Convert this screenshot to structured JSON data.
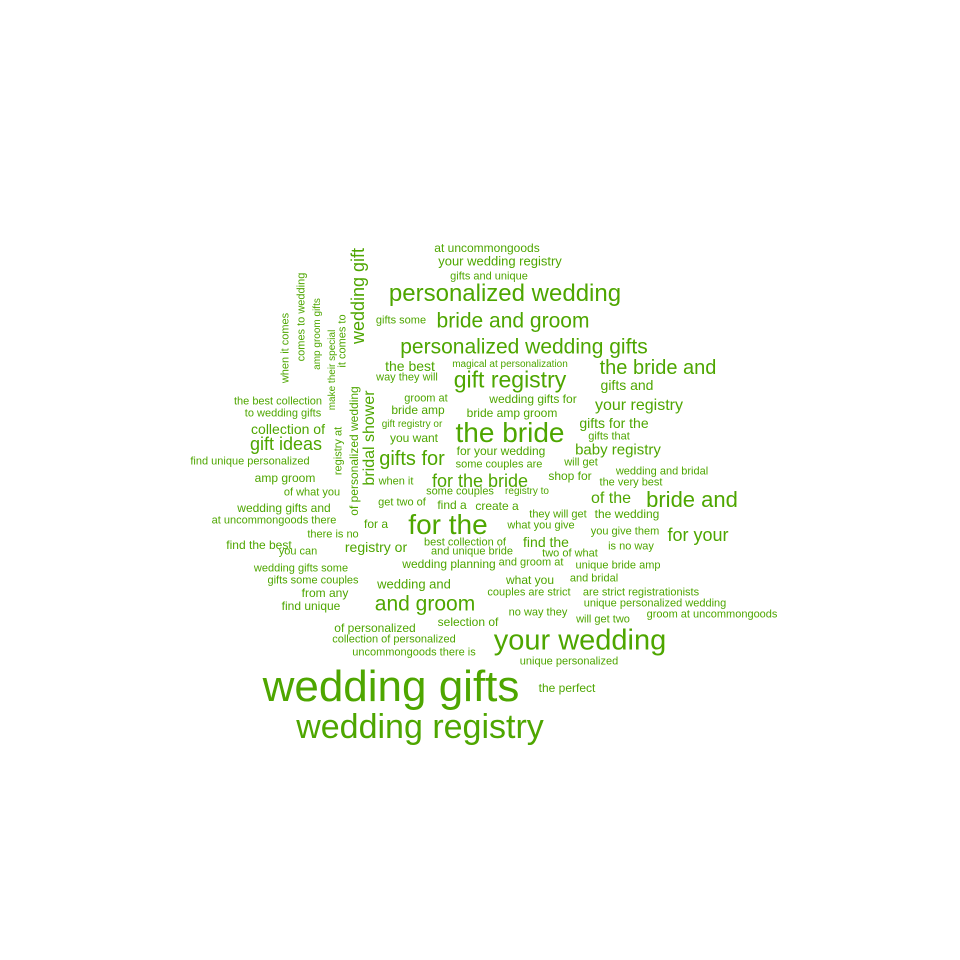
{
  "cloud": {
    "color": "#4ea600",
    "words": [
      "wedding gifts",
      "wedding registry",
      "your wedding",
      "the bride",
      "for the",
      "personalized wedding",
      "personalized wedding gifts",
      "bride and groom",
      "gift registry",
      "and groom",
      "bride and",
      "the bride and",
      "wedding gift",
      "gifts for",
      "for the bride",
      "gift ideas",
      "your registry",
      "for your",
      "baby registry",
      "bridal shower",
      "gifts for the",
      "of the",
      "registry or",
      "find the",
      "the best",
      "gifts and",
      "collection of",
      "at uncommongoods",
      "your wedding registry",
      "gifts and unique",
      "gifts some",
      "magical at personalization",
      "way they will",
      "groom at",
      "bride amp",
      "bride amp groom",
      "wedding gifts for",
      "the best collection",
      "to wedding gifts",
      "gift registry or",
      "you want",
      "gifts that",
      "find unique personalized",
      "for your wedding",
      "some couples are",
      "will get",
      "wedding and bridal",
      "amp groom",
      "when it",
      "shop for",
      "the very best",
      "of what you",
      "some couples",
      "registry to",
      "get two of",
      "find a",
      "create a",
      "they will get",
      "the wedding",
      "wedding gifts and",
      "at uncommongoods there",
      "for a",
      "what you give",
      "you give them",
      "there is no",
      "find the best",
      "best collection of",
      "is no way",
      "you can",
      "and unique bride",
      "two of what",
      "wedding planning",
      "and groom at",
      "unique bride amp",
      "wedding gifts some",
      "gifts some couples",
      "wedding and",
      "what you",
      "and bridal",
      "from any",
      "couples are strict",
      "are strict registrationists",
      "find unique",
      "no way they",
      "unique personalized wedding",
      "will get two",
      "groom at uncommongoods",
      "selection of",
      "of personalized",
      "collection of personalized",
      "uncommongoods there is",
      "unique personalized",
      "the perfect",
      "when it comes",
      "comes to wedding",
      "amp groom gifts",
      "make their special",
      "it comes to",
      "registry at",
      "of personalized wedding"
    ]
  }
}
